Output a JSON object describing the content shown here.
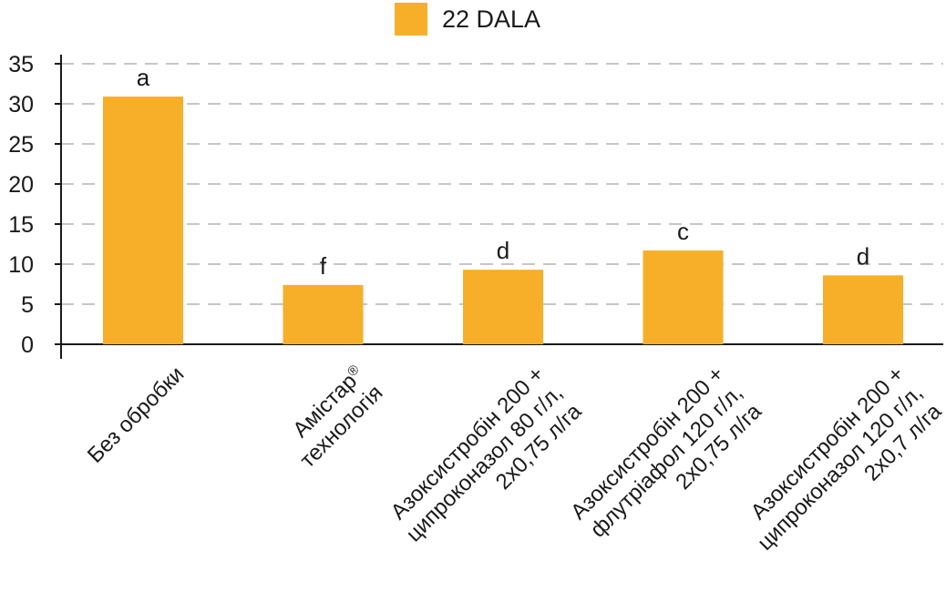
{
  "chart_data": {
    "type": "bar",
    "legend": {
      "label": "22 DALA",
      "placement": "top-center"
    },
    "categories": [
      [
        "Без обробки"
      ],
      [
        "Амістар",
        "технологія"
      ],
      [
        "Азоксистробін 200 +",
        "ципроконазол 80 г/л,",
        "2х0,75 л/га"
      ],
      [
        "Азоксистробін 200 +",
        "флутріафол 120 г/л,",
        "2х0,75 л/га"
      ],
      [
        "Азоксистробін 200 +",
        "ципроконазол 120 г/л,",
        "2х0,7 л/га"
      ]
    ],
    "superscripts": [
      "",
      "®",
      "",
      "",
      ""
    ],
    "series": [
      {
        "values": [
          30.9,
          7.4,
          9.3,
          11.7,
          8.6
        ]
      }
    ],
    "bar_letters": [
      "a",
      "f",
      "d",
      "c",
      "d"
    ],
    "ylim": [
      0,
      35
    ],
    "yticks": [
      0,
      5,
      10,
      15,
      20,
      25,
      30,
      35
    ],
    "grid": "dashed horizontal",
    "colors": {
      "bar": "#F7AF29",
      "grid": "#B3B3B3",
      "axis": "#1a1a1a"
    }
  }
}
